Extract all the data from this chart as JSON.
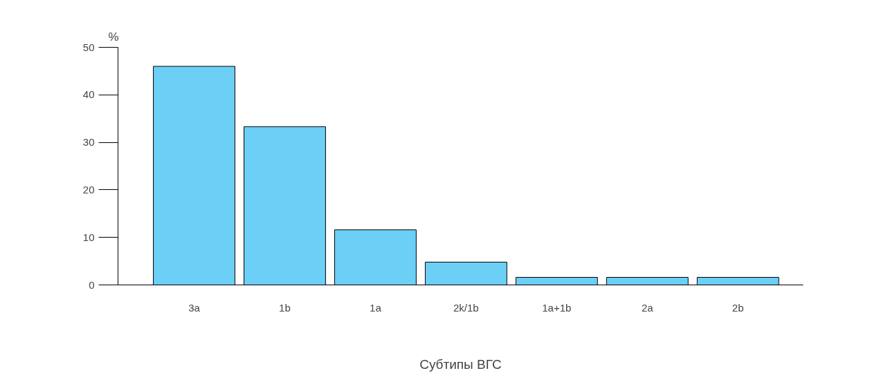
{
  "chart_data": {
    "type": "bar",
    "xlabel": "Субтипы ВГС",
    "ylabel": "%",
    "categories": [
      "3a",
      "1b",
      "1a",
      "2k/1b",
      "1a+1b",
      "2a",
      "2b"
    ],
    "values": [
      46,
      33.3,
      11.6,
      4.8,
      1.6,
      1.6,
      1.6
    ],
    "color": "#6ccff6",
    "ylim": [
      0,
      50
    ],
    "yticks": [
      0,
      10,
      20,
      30,
      40,
      50
    ],
    "grid": false
  }
}
